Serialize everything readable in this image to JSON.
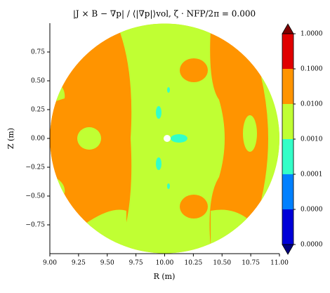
{
  "chart_data": {
    "type": "contour",
    "title": "|J × B − ∇p| / ⟨|∇p|⟩vol, ζ · NFP/2π = 0.000",
    "xlabel": "R (m)",
    "ylabel": "Z (m)",
    "xlim": [
      9.0,
      11.0
    ],
    "ylim": [
      -1.0,
      1.0
    ],
    "xticks": [
      {
        "value": 9.0,
        "label": "9.00"
      },
      {
        "value": 9.25,
        "label": "9.25"
      },
      {
        "value": 9.5,
        "label": "9.50"
      },
      {
        "value": 9.75,
        "label": "9.75"
      },
      {
        "value": 10.0,
        "label": "10.00"
      },
      {
        "value": 10.25,
        "label": "10.25"
      },
      {
        "value": 10.5,
        "label": "10.50"
      },
      {
        "value": 10.75,
        "label": "10.75"
      },
      {
        "value": 11.0,
        "label": "11.00"
      }
    ],
    "yticks": [
      {
        "value": -0.75,
        "label": "−0.75"
      },
      {
        "value": -0.5,
        "label": "−0.50"
      },
      {
        "value": -0.25,
        "label": "−0.25"
      },
      {
        "value": 0.0,
        "label": "0.00"
      },
      {
        "value": 0.25,
        "label": "0.25"
      },
      {
        "value": 0.5,
        "label": "0.50"
      },
      {
        "value": 0.75,
        "label": "0.75"
      }
    ],
    "colorbar": {
      "log_scale": true,
      "clim": [
        1e-06,
        1
      ],
      "ticks": [
        {
          "value": 1e-06,
          "label": "0.0000"
        },
        {
          "value": 1e-05,
          "label": "0.0000"
        },
        {
          "value": 0.0001,
          "label": "0.0001"
        },
        {
          "value": 0.001,
          "label": "0.0010"
        },
        {
          "value": 0.01,
          "label": "0.0100"
        },
        {
          "value": 0.1,
          "label": "0.1000"
        },
        {
          "value": 1,
          "label": "1.0000"
        }
      ],
      "colors": [
        "#0000d8",
        "#0080ff",
        "#33ffc8",
        "#c0ff33",
        "#ff9400",
        "#e00000"
      ],
      "under_color": "#00007f",
      "over_color": "#7f0000"
    }
  }
}
